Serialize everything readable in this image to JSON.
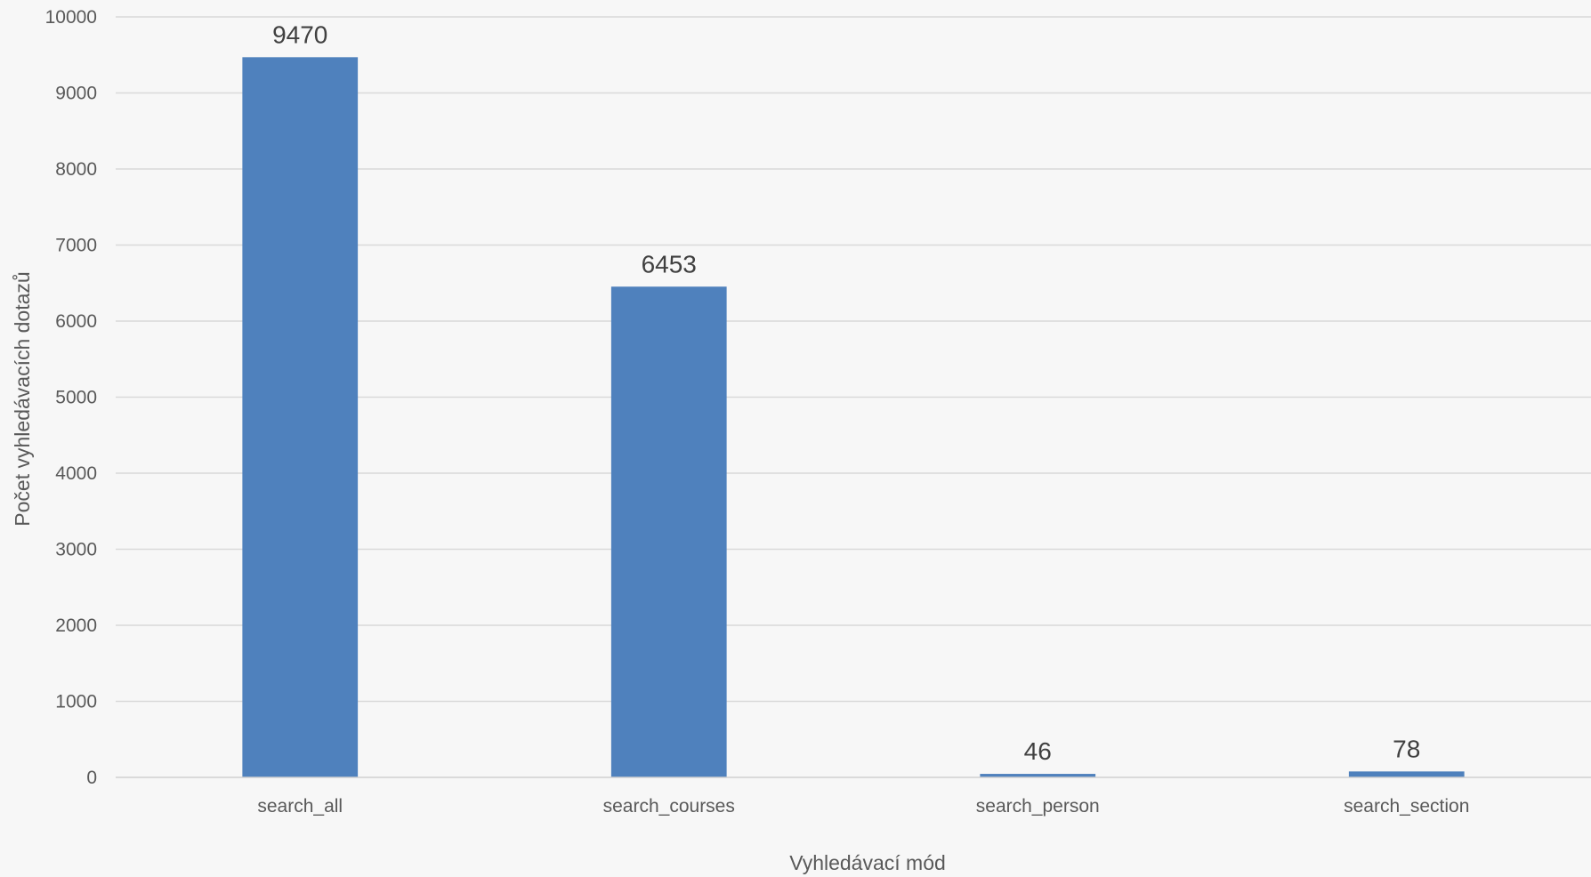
{
  "chart_data": {
    "type": "bar",
    "categories": [
      "search_all",
      "search_courses",
      "search_person",
      "search_section"
    ],
    "values": [
      9470,
      6453,
      46,
      78
    ],
    "data_labels": [
      "9470",
      "6453",
      "46",
      "78"
    ],
    "xlabel": "Vyhledávací mód",
    "ylabel": "Počet vyhledávacích dotazů",
    "ylim": [
      0,
      10000
    ],
    "yticks": [
      0,
      1000,
      2000,
      3000,
      4000,
      5000,
      6000,
      7000,
      8000,
      9000,
      10000
    ],
    "ytick_labels": [
      "0",
      "1000",
      "2000",
      "3000",
      "4000",
      "5000",
      "6000",
      "7000",
      "8000",
      "9000",
      "10000"
    ],
    "grid": true,
    "legend": "none",
    "bar_color": "#4f81bd",
    "background_color": "#f7f7f7",
    "grid_color": "#d9d9d9"
  }
}
